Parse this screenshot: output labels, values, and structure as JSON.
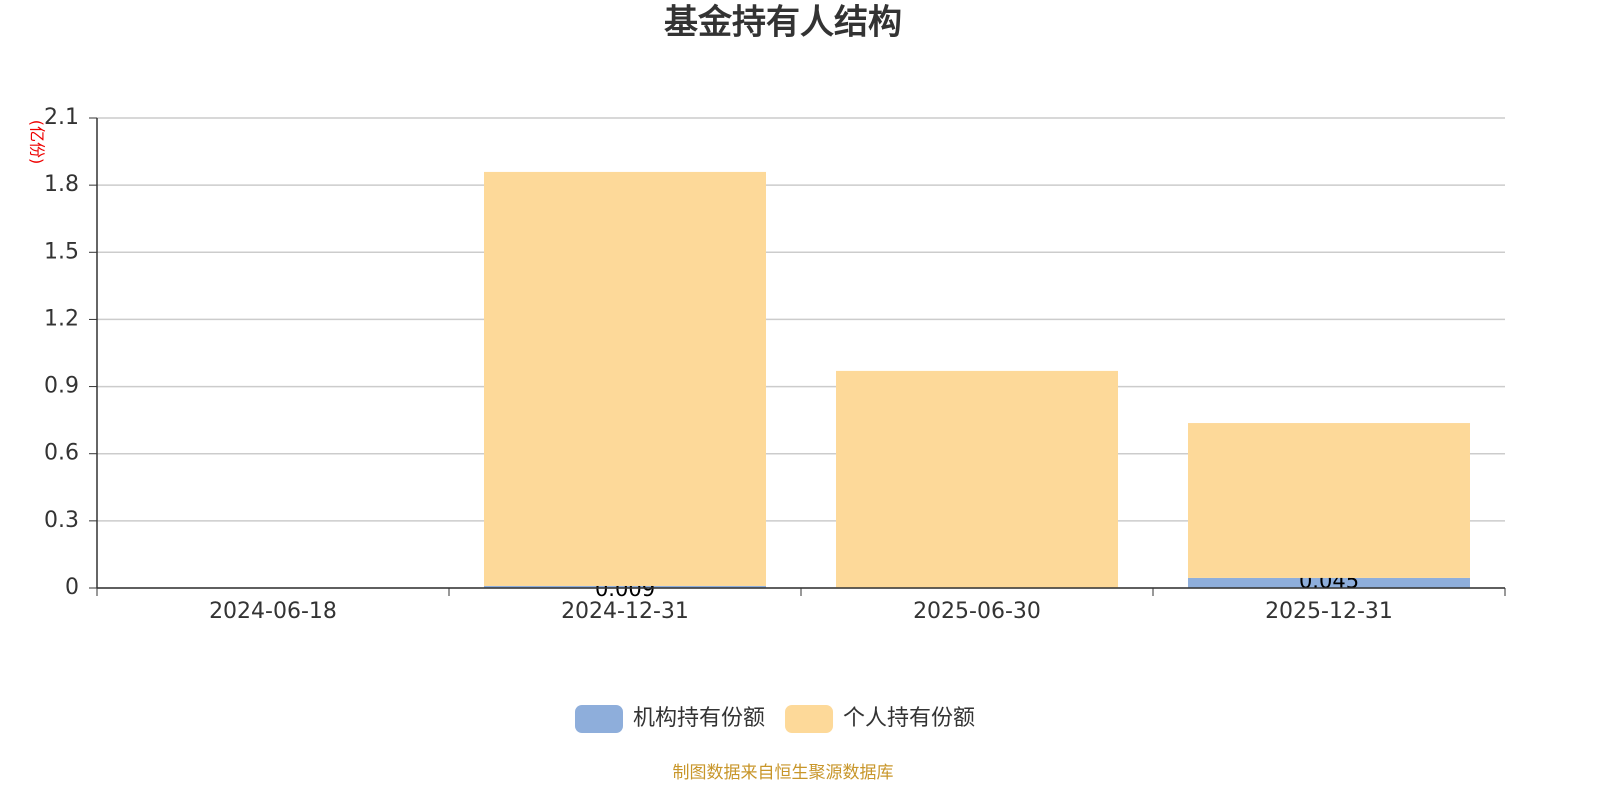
{
  "chart_data": {
    "type": "stacked-bar",
    "title": "基金持有人结构",
    "y_unit": "(亿份)",
    "categories": [
      "2024-06-18",
      "2024-12-31",
      "2025-06-30",
      "2025-12-31"
    ],
    "series": [
      {
        "name": "机构持有份额",
        "color": "#8eaedb",
        "values": [
          null,
          0.009,
          null,
          0.045
        ]
      },
      {
        "name": "个人持有份额",
        "color": "#fdd999",
        "values": [
          null,
          1.85,
          0.97,
          0.692
        ]
      }
    ],
    "ylim": [
      0,
      2.1
    ],
    "yticks": [
      0,
      0.3,
      0.6,
      0.9,
      1.2,
      1.5,
      1.8,
      2.1
    ],
    "grid": true,
    "legend": "bottom",
    "source": "制图数据来自恒生聚源数据库"
  }
}
